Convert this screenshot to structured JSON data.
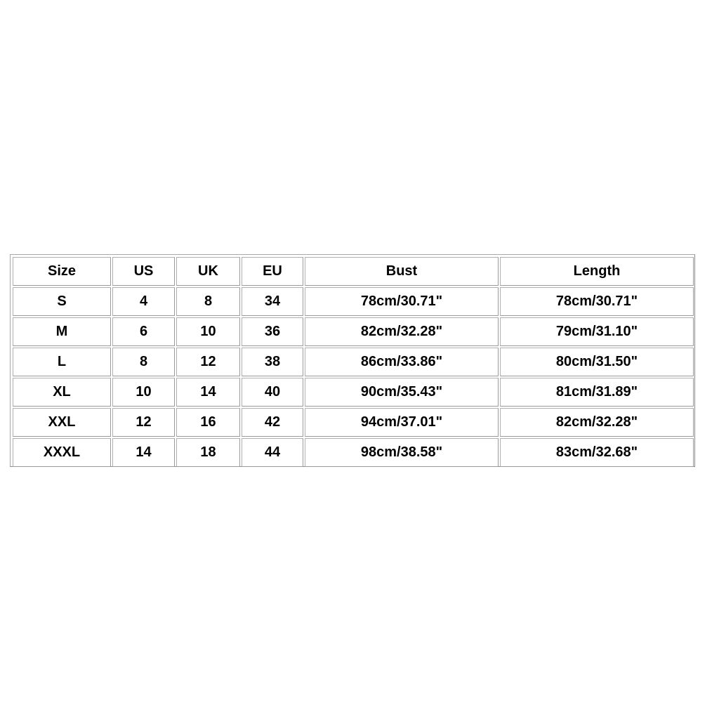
{
  "size_chart": {
    "headers": [
      "Size",
      "US",
      "UK",
      "EU",
      "Bust",
      "Length"
    ],
    "rows": [
      [
        "S",
        "4",
        "8",
        "34",
        "78cm/30.71\"",
        "78cm/30.71\""
      ],
      [
        "M",
        "6",
        "10",
        "36",
        "82cm/32.28\"",
        "79cm/31.10\""
      ],
      [
        "L",
        "8",
        "12",
        "38",
        "86cm/33.86\"",
        "80cm/31.50\""
      ],
      [
        "XL",
        "10",
        "14",
        "40",
        "90cm/35.43\"",
        "81cm/31.89\""
      ],
      [
        "XXL",
        "12",
        "16",
        "42",
        "94cm/37.01\"",
        "82cm/32.28\""
      ],
      [
        "XXXL",
        "14",
        "18",
        "44",
        "98cm/38.58\"",
        "83cm/32.68\""
      ]
    ]
  }
}
